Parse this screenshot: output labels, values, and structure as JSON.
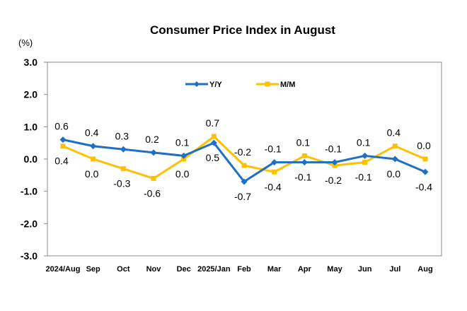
{
  "chart_data": {
    "type": "line",
    "title": "Consumer Price Index in August",
    "ylabel": "(%)",
    "xlabel": "",
    "ylim": [
      -3.0,
      3.0
    ],
    "yticks": [
      "3.0",
      "2.0",
      "1.0",
      "0.0",
      "-1.0",
      "-2.0",
      "-3.0"
    ],
    "ytick_values": [
      3,
      2,
      1,
      0,
      -1,
      -2,
      -3
    ],
    "categories": [
      "2024/Aug",
      "Sep",
      "Oct",
      "Nov",
      "Dec",
      "2025/Jan",
      "Feb",
      "Mar",
      "Apr",
      "May",
      "Jun",
      "Jul",
      "Aug"
    ],
    "series": [
      {
        "name": "Y/Y",
        "color": "#1F6FC5",
        "marker": "diamond",
        "values": [
          0.6,
          0.4,
          0.3,
          0.2,
          0.1,
          0.5,
          -0.7,
          -0.1,
          -0.1,
          -0.1,
          0.1,
          0.0,
          -0.4
        ],
        "labels": [
          "0.6",
          "0.4",
          "0.3",
          "0.2",
          "0.1",
          "0.5",
          "-0.7",
          "-0.1",
          "-0.1",
          "-0.1",
          "0.1",
          "0.0",
          "-0.4"
        ],
        "label_pos": [
          "above",
          "above",
          "above",
          "above",
          "above",
          "below",
          "below",
          "above",
          "below",
          "above",
          "above",
          "below",
          "below"
        ]
      },
      {
        "name": "M/M",
        "color": "#FFC000",
        "marker": "square",
        "values": [
          0.4,
          0.0,
          -0.3,
          -0.6,
          0.0,
          0.7,
          -0.2,
          -0.4,
          0.1,
          -0.2,
          -0.1,
          0.4,
          0.0
        ],
        "labels": [
          "0.4",
          "0.0",
          "-0.3",
          "-0.6",
          "0.0",
          "0.7",
          "-0.2",
          "-0.4",
          "0.1",
          "-0.2",
          "-0.1",
          "0.4",
          "0.0"
        ],
        "label_pos": [
          "below",
          "below",
          "below",
          "below",
          "below",
          "above",
          "above",
          "below",
          "above",
          "below",
          "below",
          "above",
          "above"
        ]
      }
    ],
    "legend": {
      "placement": "top-center"
    },
    "grid": false
  }
}
